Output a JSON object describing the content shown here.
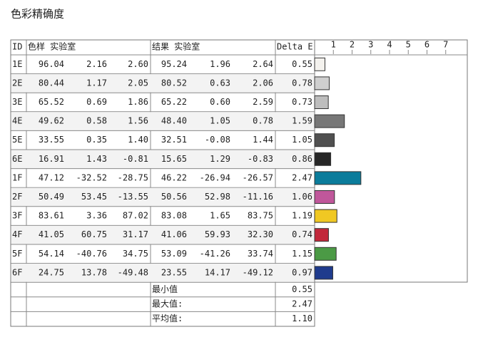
{
  "header": {
    "title": "色彩精确度"
  },
  "table": {
    "columns": [
      "ID",
      "色样 实验室",
      "结果 实验室",
      "Delta E"
    ],
    "rows": [
      [
        "96.04",
        "2.16",
        "2.60",
        "95.24",
        "1.96",
        "2.64"
      ],
      [
        "80.44",
        "1.17",
        "2.05",
        "80.52",
        "0.63",
        "2.06"
      ],
      [
        "65.52",
        "0.69",
        "1.86",
        "65.22",
        "0.60",
        "2.59"
      ],
      [
        "49.62",
        "0.58",
        "1.56",
        "48.40",
        "1.05",
        "0.78"
      ],
      [
        "33.55",
        "0.35",
        "1.40",
        "32.51",
        "-0.08",
        "1.44"
      ],
      [
        "16.91",
        "1.43",
        "-0.81",
        "15.65",
        "1.29",
        "-0.83"
      ],
      [
        "47.12",
        "-32.52",
        "-28.75",
        "46.22",
        "-26.94",
        "-26.57"
      ],
      [
        "50.49",
        "53.45",
        "-13.55",
        "50.56",
        "52.98",
        "-11.16"
      ],
      [
        "83.61",
        "3.36",
        "87.02",
        "83.08",
        "1.65",
        "83.75"
      ],
      [
        "41.05",
        "60.75",
        "31.17",
        "41.06",
        "59.93",
        "32.30"
      ],
      [
        "54.14",
        "-40.76",
        "34.75",
        "53.09",
        "-41.26",
        "33.74"
      ],
      [
        "24.75",
        "13.78",
        "-49.48",
        "23.55",
        "14.17",
        "-49.12"
      ]
    ],
    "summary": [
      [
        "最小值",
        "0.55"
      ],
      [
        "最大值:",
        "2.47"
      ],
      [
        "平均值:",
        "1.10"
      ]
    ]
  },
  "chart_data": {
    "type": "bar",
    "orientation": "horizontal",
    "categories": [
      "1E",
      "2E",
      "3E",
      "4E",
      "5E",
      "6E",
      "1F",
      "2F",
      "3F",
      "4F",
      "5F",
      "6F"
    ],
    "values": [
      0.55,
      0.78,
      0.73,
      1.59,
      1.05,
      0.86,
      2.47,
      1.06,
      1.19,
      0.74,
      1.15,
      0.97
    ],
    "value_labels": [
      "0.55",
      "0.78",
      "0.73",
      "1.59",
      "1.05",
      "0.86",
      "2.47",
      "1.06",
      "1.19",
      "0.74",
      "1.15",
      "0.97"
    ],
    "colors": [
      "#f4f2ee",
      "#cfcfcf",
      "#bdbdbd",
      "#777777",
      "#505050",
      "#262626",
      "#0b7c9b",
      "#c0579b",
      "#f0c823",
      "#c2283b",
      "#4b9a45",
      "#1f3b8d"
    ],
    "xlim": [
      0,
      8
    ],
    "xticks": [
      1,
      2,
      3,
      4,
      5,
      6,
      7
    ]
  }
}
